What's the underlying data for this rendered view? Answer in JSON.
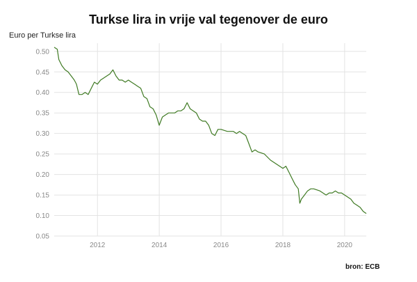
{
  "chart_data": {
    "type": "line",
    "title": "Turkse lira in vrije val tegenover de euro",
    "ylabel": "Euro per Turkse lira",
    "xlabel": "",
    "source": "bron: ECB",
    "ylim": [
      0.05,
      0.52
    ],
    "xlim": [
      2010.6,
      2020.7
    ],
    "yticks": [
      "0.05",
      "0.10",
      "0.15",
      "0.20",
      "0.25",
      "0.30",
      "0.35",
      "0.40",
      "0.45",
      "0.50"
    ],
    "xticks": [
      "2012",
      "2014",
      "2016",
      "2018",
      "2020"
    ],
    "grid": true,
    "line_color": "#3f7a23",
    "series": [
      {
        "x": [
          2010.6,
          2010.7,
          2010.75,
          2010.85,
          2010.95,
          2011.05,
          2011.15,
          2011.25,
          2011.32,
          2011.4,
          2011.5,
          2011.6,
          2011.7,
          2011.8,
          2011.9,
          2012.0,
          2012.1,
          2012.2,
          2012.3,
          2012.4,
          2012.5,
          2012.6,
          2012.7,
          2012.8,
          2012.9,
          2013.0,
          2013.1,
          2013.2,
          2013.3,
          2013.4,
          2013.5,
          2013.6,
          2013.7,
          2013.8,
          2013.9,
          2014.0,
          2014.1,
          2014.2,
          2014.3,
          2014.4,
          2014.5,
          2014.6,
          2014.7,
          2014.8,
          2014.9,
          2015.0,
          2015.1,
          2015.2,
          2015.3,
          2015.4,
          2015.5,
          2015.6,
          2015.7,
          2015.8,
          2015.9,
          2016.0,
          2016.2,
          2016.4,
          2016.5,
          2016.6,
          2016.7,
          2016.8,
          2016.9,
          2017.0,
          2017.1,
          2017.2,
          2017.4,
          2017.6,
          2017.8,
          2018.0,
          2018.1,
          2018.2,
          2018.3,
          2018.4,
          2018.5,
          2018.55,
          2018.6,
          2018.7,
          2018.8,
          2018.9,
          2019.0,
          2019.2,
          2019.4,
          2019.5,
          2019.6,
          2019.7,
          2019.8,
          2019.9,
          2020.0,
          2020.1,
          2020.2,
          2020.3,
          2020.4,
          2020.5,
          2020.6,
          2020.7
        ],
        "values": [
          0.51,
          0.505,
          0.48,
          0.465,
          0.455,
          0.45,
          0.44,
          0.43,
          0.42,
          0.395,
          0.395,
          0.4,
          0.395,
          0.41,
          0.425,
          0.42,
          0.43,
          0.435,
          0.44,
          0.445,
          0.455,
          0.44,
          0.43,
          0.43,
          0.425,
          0.43,
          0.425,
          0.42,
          0.415,
          0.41,
          0.39,
          0.385,
          0.365,
          0.36,
          0.345,
          0.32,
          0.34,
          0.345,
          0.35,
          0.35,
          0.35,
          0.355,
          0.355,
          0.36,
          0.375,
          0.36,
          0.355,
          0.35,
          0.335,
          0.33,
          0.33,
          0.32,
          0.3,
          0.295,
          0.31,
          0.31,
          0.305,
          0.305,
          0.3,
          0.305,
          0.3,
          0.295,
          0.275,
          0.255,
          0.26,
          0.255,
          0.25,
          0.235,
          0.225,
          0.215,
          0.22,
          0.205,
          0.19,
          0.175,
          0.165,
          0.13,
          0.14,
          0.15,
          0.16,
          0.165,
          0.165,
          0.16,
          0.15,
          0.155,
          0.155,
          0.16,
          0.155,
          0.155,
          0.15,
          0.145,
          0.14,
          0.13,
          0.125,
          0.12,
          0.11,
          0.105
        ]
      }
    ]
  }
}
